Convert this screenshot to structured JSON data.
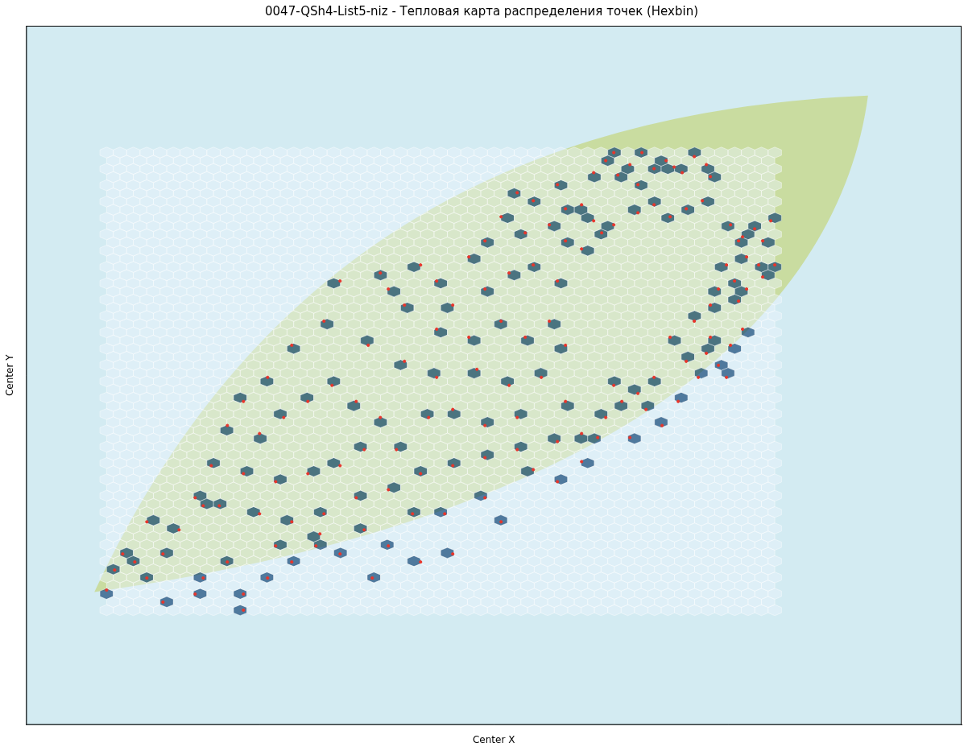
{
  "chart_data": {
    "type": "hexbin",
    "title": "0047-QSh4-List5-niz - Тепловая карта распределения точек (Hexbin)",
    "x_label": "Center X",
    "y_label": "Center Y",
    "xlim": [
      30,
      1192
    ],
    "ylim": [
      903,
      32
    ],
    "tick_labels": false,
    "color": "#e8362c",
    "x": [
      735,
      750,
      765,
      780,
      795,
      810,
      825,
      835,
      845,
      860,
      875,
      880,
      790,
      760,
      640,
      660,
      690,
      700,
      720,
      735,
      745,
      760,
      790,
      810,
      830,
      850,
      870,
      680,
      700,
      720,
      650,
      620,
      600,
      580,
      905,
      920,
      935,
      945,
      955,
      915,
      925,
      940,
      900,
      910,
      925,
      945,
      960,
      890,
      880,
      915,
      860,
      880,
      875,
      890,
      905,
      920,
      850,
      865,
      900,
      830,
      760,
      770,
      790,
      800,
      750,
      740,
      780,
      820,
      840,
      810,
      520,
      540,
      470,
      480,
      500,
      560,
      600,
      630,
      660,
      690,
      540,
      580,
      620,
      650,
      680,
      700,
      455,
      500,
      540,
      590,
      630,
      670,
      700,
      530,
      560,
      600,
      640,
      690,
      720,
      420,
      400,
      360,
      330,
      300,
      280,
      320,
      350,
      380,
      410,
      440,
      470,
      490,
      450,
      420,
      380,
      340,
      300,
      260,
      240,
      270,
      320,
      360,
      400,
      440,
      480,
      520,
      560,
      600,
      640,
      660,
      690,
      720,
      150,
      140,
      165,
      180,
      200,
      220,
      250,
      250,
      280,
      300,
      330,
      360,
      390,
      395,
      420,
      450,
      480,
      510,
      550,
      600,
      620,
      300,
      200,
      130,
      180,
      340,
      460,
      520,
      560,
      240
    ],
    "y": [
      215,
      200,
      218,
      205,
      190,
      210,
      200,
      208,
      215,
      195,
      205,
      220,
      230,
      190,
      240,
      250,
      230,
      260,
      255,
      275,
      290,
      280,
      265,
      255,
      270,
      260,
      250,
      280,
      300,
      310,
      290,
      270,
      300,
      320,
      280,
      295,
      285,
      300,
      275,
      300,
      320,
      330,
      330,
      350,
      360,
      345,
      330,
      360,
      380,
      375,
      400,
      420,
      440,
      455,
      430,
      410,
      450,
      470,
      470,
      420,
      480,
      500,
      490,
      510,
      520,
      545,
      545,
      530,
      500,
      470,
      330,
      350,
      340,
      360,
      380,
      380,
      360,
      340,
      330,
      350,
      410,
      420,
      400,
      420,
      400,
      430,
      430,
      450,
      470,
      460,
      480,
      470,
      500,
      520,
      510,
      530,
      520,
      550,
      540,
      350,
      400,
      430,
      470,
      500,
      530,
      540,
      520,
      500,
      480,
      500,
      520,
      560,
      560,
      580,
      590,
      600,
      590,
      580,
      620,
      630,
      640,
      650,
      640,
      620,
      610,
      590,
      580,
      570,
      560,
      585,
      600,
      575,
      690,
      710,
      700,
      720,
      690,
      660,
      630,
      720,
      700,
      740,
      720,
      700,
      680,
      665,
      690,
      660,
      680,
      640,
      640,
      620,
      650,
      760,
      750,
      735,
      650,
      680,
      720,
      700,
      690,
      740
    ]
  }
}
